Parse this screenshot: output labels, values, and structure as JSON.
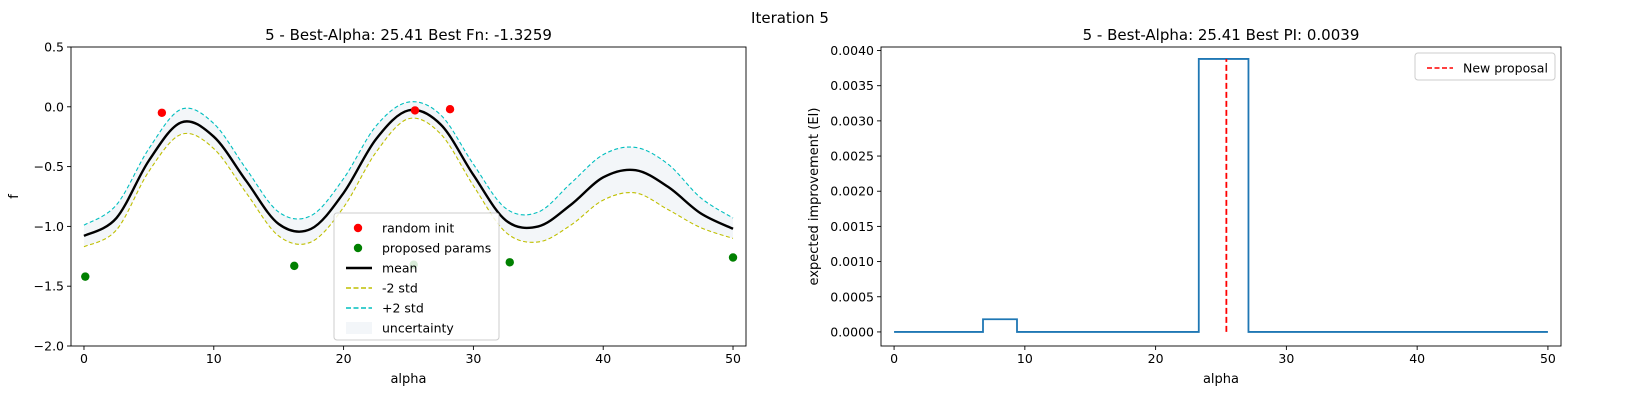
{
  "figure": {
    "suptitle": "Iteration 5"
  },
  "chart_data": [
    {
      "type": "line",
      "title": "5 - Best-Alpha: 25.41 Best Fn: -1.3259",
      "xlabel": "alpha",
      "ylabel": "f",
      "xlim": [
        -1,
        51
      ],
      "ylim": [
        -2.0,
        0.5
      ],
      "xticks": [
        0,
        10,
        20,
        30,
        40,
        50
      ],
      "xtick_labels": [
        "0",
        "10",
        "20",
        "30",
        "40",
        "50"
      ],
      "yticks": [
        -2.0,
        -1.5,
        -1.0,
        -0.5,
        0.0,
        0.5
      ],
      "ytick_labels": [
        "−2.0",
        "−1.5",
        "−1.0",
        "−0.5",
        "0.0",
        "0.5"
      ],
      "grid": false,
      "legend_position": "lower-center",
      "series": [
        {
          "name": "random init",
          "kind": "scatter",
          "color": "#ff0000",
          "points": [
            [
              6.0,
              -0.05
            ],
            [
              25.5,
              -0.03
            ],
            [
              28.2,
              -0.02
            ]
          ]
        },
        {
          "name": "proposed params",
          "kind": "scatter",
          "color": "#008000",
          "points": [
            [
              0.1,
              -1.42
            ],
            [
              16.2,
              -1.33
            ],
            [
              25.4,
              -1.32
            ],
            [
              32.8,
              -1.3
            ],
            [
              50.0,
              -1.26
            ]
          ]
        },
        {
          "name": "mean",
          "kind": "line",
          "color": "#000000",
          "style": "solid",
          "x": [
            0,
            2.5,
            5,
            7.5,
            10,
            12.5,
            15,
            17.5,
            20,
            22.5,
            25,
            27.5,
            30,
            32.5,
            35,
            37.5,
            40,
            42.5,
            45,
            47.5,
            50
          ],
          "y": [
            -1.08,
            -0.93,
            -0.45,
            -0.13,
            -0.25,
            -0.62,
            -0.98,
            -1.02,
            -0.72,
            -0.27,
            -0.03,
            -0.15,
            -0.57,
            -0.95,
            -1.0,
            -0.82,
            -0.59,
            -0.53,
            -0.67,
            -0.89,
            -1.02
          ]
        },
        {
          "name": "-2 std",
          "kind": "line",
          "color": "#bfbf00",
          "style": "dashed",
          "x": [
            0,
            2.5,
            5,
            7.5,
            10,
            12.5,
            15,
            17.5,
            20,
            22.5,
            25,
            27.5,
            30,
            32.5,
            35,
            37.5,
            40,
            42.5,
            45,
            47.5,
            50
          ],
          "y": [
            -1.17,
            -1.03,
            -0.54,
            -0.23,
            -0.35,
            -0.72,
            -1.08,
            -1.13,
            -0.84,
            -0.38,
            -0.1,
            -0.23,
            -0.66,
            -1.05,
            -1.13,
            -0.99,
            -0.78,
            -0.72,
            -0.86,
            -1.01,
            -1.1
          ]
        },
        {
          "name": "+2 std",
          "kind": "line",
          "color": "#00bfbf",
          "style": "dashed",
          "x": [
            0,
            2.5,
            5,
            7.5,
            10,
            12.5,
            15,
            17.5,
            20,
            22.5,
            25,
            27.5,
            30,
            32.5,
            35,
            37.5,
            40,
            42.5,
            45,
            47.5,
            50
          ],
          "y": [
            -0.99,
            -0.82,
            -0.35,
            -0.02,
            -0.14,
            -0.52,
            -0.88,
            -0.91,
            -0.6,
            -0.16,
            0.04,
            -0.07,
            -0.48,
            -0.85,
            -0.88,
            -0.64,
            -0.4,
            -0.34,
            -0.48,
            -0.76,
            -0.93
          ]
        },
        {
          "name": "uncertainty",
          "kind": "band",
          "color": "#dde6ee",
          "between": [
            "-2 std",
            "+2 std"
          ]
        }
      ]
    },
    {
      "type": "line",
      "title": "5 - Best-Alpha: 25.41 Best PI: 0.0039",
      "xlabel": "alpha",
      "ylabel": "expected improvement (EI)",
      "xlim": [
        -1,
        51
      ],
      "ylim": [
        -0.0002,
        0.00405
      ],
      "xticks": [
        0,
        10,
        20,
        30,
        40,
        50
      ],
      "xtick_labels": [
        "0",
        "10",
        "20",
        "30",
        "40",
        "50"
      ],
      "yticks": [
        0,
        0.0005,
        0.001,
        0.0015,
        0.002,
        0.0025,
        0.003,
        0.0035,
        0.004
      ],
      "ytick_labels": [
        "0.0000",
        "0.0005",
        "0.0010",
        "0.0015",
        "0.0020",
        "0.0025",
        "0.0030",
        "0.0035",
        "0.0040"
      ],
      "grid": false,
      "legend_position": "top-right",
      "series": [
        {
          "name": "",
          "kind": "line",
          "color": "#1f77b4",
          "style": "solid",
          "x": [
            0,
            6.8,
            6.8,
            9.4,
            9.4,
            23.3,
            23.3,
            27.1,
            27.1,
            50
          ],
          "y": [
            0,
            0,
            0.00018,
            0.00018,
            0,
            0,
            0.00388,
            0.00388,
            0,
            0
          ]
        },
        {
          "name": "New proposal",
          "kind": "vline",
          "color": "#ff0000",
          "style": "dashed",
          "x": 25.41,
          "y": [
            0,
            0.00388
          ]
        }
      ]
    }
  ]
}
